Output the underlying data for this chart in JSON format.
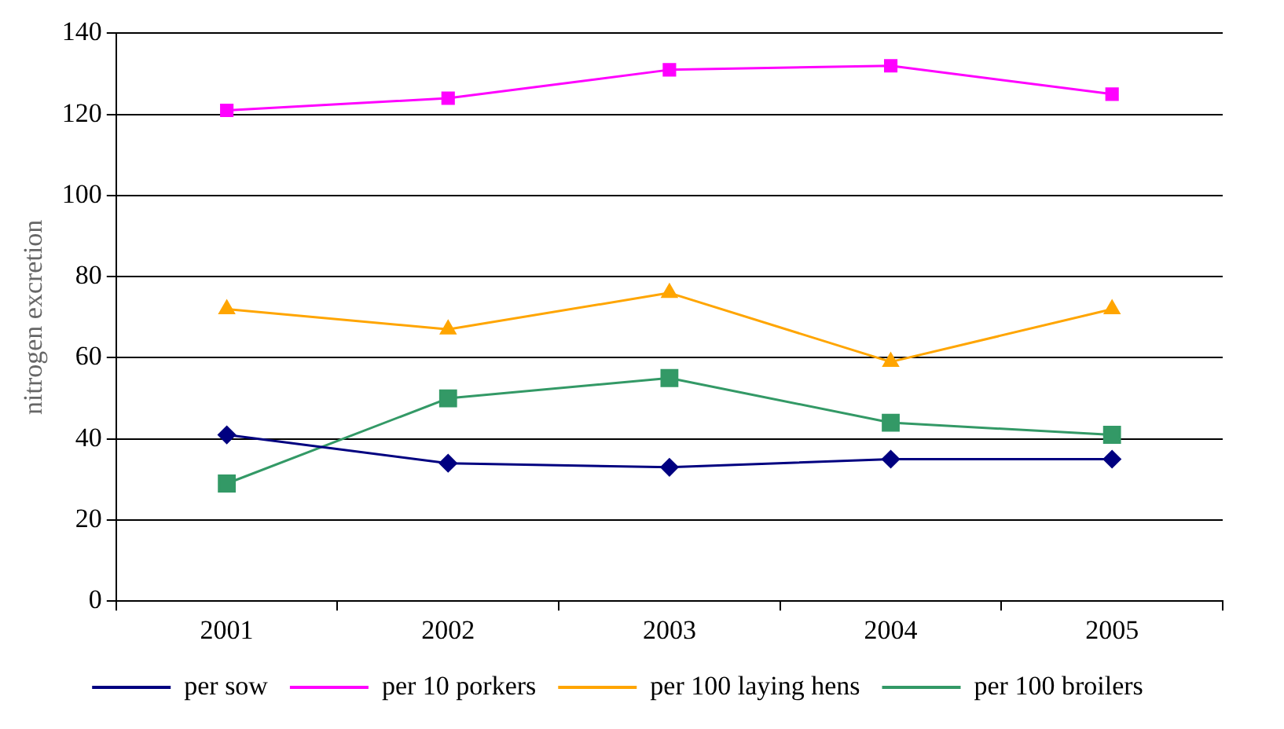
{
  "chart_data": {
    "type": "line",
    "ylabel": "nitrogen excretion",
    "categories": [
      "2001",
      "2002",
      "2003",
      "2004",
      "2005"
    ],
    "series": [
      {
        "name": "per sow",
        "color": "#000080",
        "values": [
          41,
          34,
          33,
          35,
          35
        ],
        "marker": "diamond"
      },
      {
        "name": "per 10 porkers",
        "color": "#ff00ff",
        "values": [
          121,
          124,
          131,
          132,
          125
        ],
        "marker": "square"
      },
      {
        "name": "per 100 laying hens",
        "color": "#ffa500",
        "values": [
          72,
          67,
          76,
          59,
          72
        ],
        "marker": "triangle"
      },
      {
        "name": "per 100 broilers",
        "color": "#339966",
        "values": [
          29,
          50,
          55,
          44,
          41
        ],
        "marker": "square"
      }
    ],
    "ylim": [
      0,
      140
    ],
    "yticks": [
      0,
      20,
      40,
      60,
      80,
      100,
      120,
      140
    ],
    "grid": "y",
    "legend": "bottom",
    "line_style": "solid"
  }
}
